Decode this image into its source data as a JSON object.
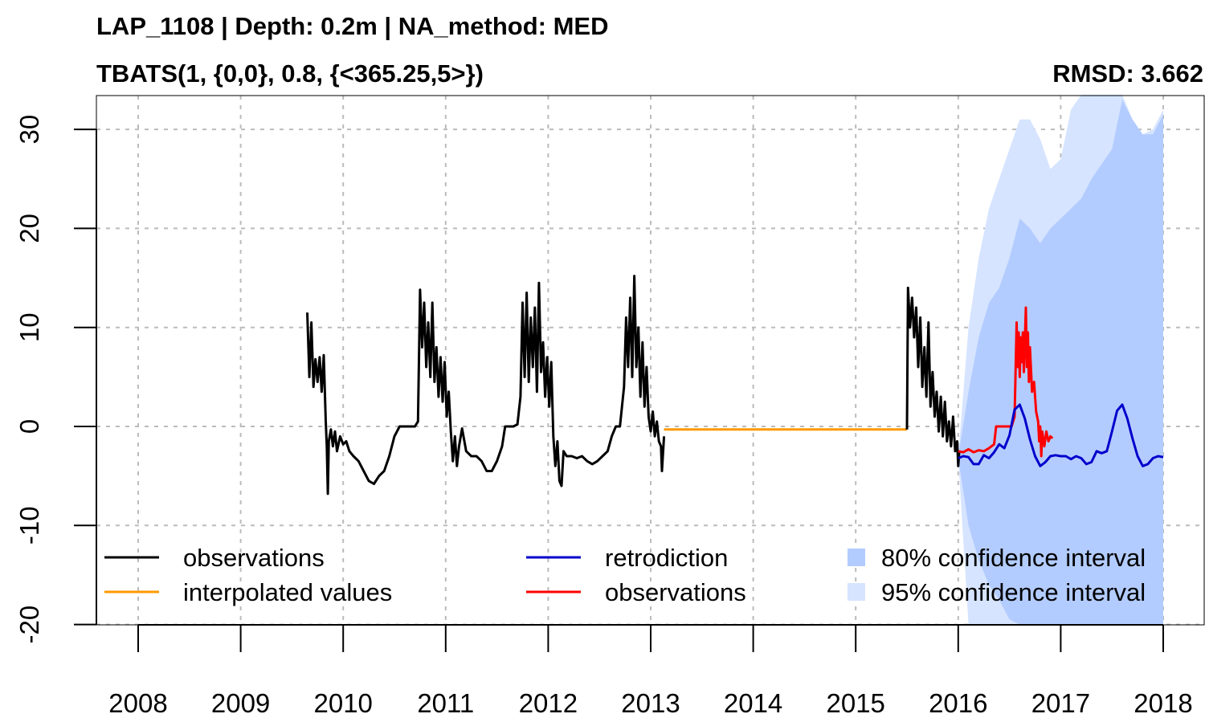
{
  "chart_data": {
    "type": "line",
    "title": "LAP_1108 | Depth: 0.2m | NA_method: MED",
    "subtitle": "TBATS(1, {0,0}, 0.8, {<365.25,5>})",
    "metric_label": "RMSD: 3.662",
    "xlabel": "",
    "ylabel": "",
    "xlim": [
      2007.6,
      2018.4
    ],
    "ylim": [
      -20,
      33.5
    ],
    "x_ticks": [
      "2008",
      "2009",
      "2010",
      "2011",
      "2012",
      "2013",
      "2014",
      "2015",
      "2016",
      "2017",
      "2018"
    ],
    "y_ticks": [
      "-20",
      "-10",
      "0",
      "10",
      "20",
      "30"
    ],
    "grid": true,
    "legend_position": "bottom",
    "legend": [
      {
        "label": "observations",
        "kind": "line",
        "color": "#000000"
      },
      {
        "label": "interpolated values",
        "kind": "line",
        "color": "#FF9900"
      },
      {
        "label": "retrodiction",
        "kind": "line",
        "color": "#0000CC"
      },
      {
        "label": "observations",
        "kind": "line",
        "color": "#FF0000"
      },
      {
        "label": "80% confidence interval",
        "kind": "box",
        "color": "#B3CCFF"
      },
      {
        "label": "95% confidence interval",
        "kind": "box",
        "color": "#D6E4FF"
      }
    ],
    "series": [
      {
        "name": "observations",
        "color": "#000000",
        "points": [
          [
            2009.65,
            11.5
          ],
          [
            2009.67,
            5.0
          ],
          [
            2009.69,
            10.5
          ],
          [
            2009.71,
            4.0
          ],
          [
            2009.73,
            6.8
          ],
          [
            2009.75,
            4.5
          ],
          [
            2009.77,
            7.0
          ],
          [
            2009.79,
            3.5
          ],
          [
            2009.81,
            7.2
          ],
          [
            2009.83,
            0.5
          ],
          [
            2009.84,
            -2.0
          ],
          [
            2009.85,
            -6.8
          ],
          [
            2009.86,
            -1.5
          ],
          [
            2009.88,
            -0.3
          ],
          [
            2009.9,
            -2.0
          ],
          [
            2009.92,
            -0.5
          ],
          [
            2009.94,
            -2.5
          ],
          [
            2009.97,
            -1.0
          ],
          [
            2010.0,
            -1.8
          ],
          [
            2010.03,
            -1.5
          ],
          [
            2010.06,
            -2.5
          ],
          [
            2010.1,
            -3.0
          ],
          [
            2010.15,
            -3.5
          ],
          [
            2010.2,
            -4.5
          ],
          [
            2010.25,
            -5.5
          ],
          [
            2010.3,
            -5.8
          ],
          [
            2010.35,
            -5.0
          ],
          [
            2010.4,
            -4.5
          ],
          [
            2010.45,
            -3.0
          ],
          [
            2010.5,
            -1.0
          ],
          [
            2010.55,
            0.0
          ],
          [
            2010.6,
            0.0
          ],
          [
            2010.65,
            0.0
          ],
          [
            2010.7,
            0.0
          ],
          [
            2010.73,
            0.5
          ],
          [
            2010.75,
            13.8
          ],
          [
            2010.77,
            8.0
          ],
          [
            2010.79,
            12.5
          ],
          [
            2010.81,
            6.0
          ],
          [
            2010.83,
            10.5
          ],
          [
            2010.85,
            5.0
          ],
          [
            2010.87,
            12.5
          ],
          [
            2010.89,
            4.5
          ],
          [
            2010.91,
            8.0
          ],
          [
            2010.93,
            3.0
          ],
          [
            2010.95,
            7.0
          ],
          [
            2010.97,
            2.5
          ],
          [
            2010.99,
            6.5
          ],
          [
            2011.01,
            1.0
          ],
          [
            2011.03,
            3.5
          ],
          [
            2011.05,
            -0.5
          ],
          [
            2011.07,
            -3.5
          ],
          [
            2011.09,
            -1.0
          ],
          [
            2011.11,
            -4.0
          ],
          [
            2011.13,
            -2.0
          ],
          [
            2011.16,
            -0.2
          ],
          [
            2011.2,
            -2.5
          ],
          [
            2011.25,
            -3.0
          ],
          [
            2011.3,
            -3.0
          ],
          [
            2011.35,
            -3.5
          ],
          [
            2011.4,
            -4.5
          ],
          [
            2011.45,
            -4.5
          ],
          [
            2011.5,
            -3.5
          ],
          [
            2011.55,
            -2.0
          ],
          [
            2011.58,
            0.0
          ],
          [
            2011.62,
            0.0
          ],
          [
            2011.66,
            0.0
          ],
          [
            2011.7,
            0.2
          ],
          [
            2011.73,
            3.0
          ],
          [
            2011.75,
            12.5
          ],
          [
            2011.77,
            5.0
          ],
          [
            2011.79,
            13.5
          ],
          [
            2011.81,
            4.5
          ],
          [
            2011.83,
            11.0
          ],
          [
            2011.85,
            6.0
          ],
          [
            2011.87,
            12.0
          ],
          [
            2011.89,
            3.5
          ],
          [
            2011.91,
            14.5
          ],
          [
            2011.93,
            5.5
          ],
          [
            2011.95,
            8.5
          ],
          [
            2011.97,
            3.0
          ],
          [
            2011.99,
            7.0
          ],
          [
            2012.01,
            2.0
          ],
          [
            2012.03,
            6.5
          ],
          [
            2012.05,
            -1.0
          ],
          [
            2012.07,
            -4.0
          ],
          [
            2012.09,
            -1.5
          ],
          [
            2012.11,
            -5.5
          ],
          [
            2012.13,
            -6.0
          ],
          [
            2012.15,
            -2.5
          ],
          [
            2012.18,
            -3.0
          ],
          [
            2012.23,
            -3.0
          ],
          [
            2012.28,
            -3.2
          ],
          [
            2012.33,
            -3.0
          ],
          [
            2012.38,
            -3.5
          ],
          [
            2012.43,
            -3.8
          ],
          [
            2012.48,
            -3.5
          ],
          [
            2012.53,
            -3.0
          ],
          [
            2012.58,
            -2.5
          ],
          [
            2012.62,
            -1.0
          ],
          [
            2012.66,
            0.0
          ],
          [
            2012.7,
            0.0
          ],
          [
            2012.74,
            4.0
          ],
          [
            2012.76,
            11.0
          ],
          [
            2012.78,
            6.0
          ],
          [
            2012.8,
            13.0
          ],
          [
            2012.82,
            5.0
          ],
          [
            2012.84,
            15.2
          ],
          [
            2012.86,
            6.0
          ],
          [
            2012.88,
            10.0
          ],
          [
            2012.9,
            3.0
          ],
          [
            2012.92,
            8.5
          ],
          [
            2012.94,
            2.0
          ],
          [
            2012.96,
            6.0
          ],
          [
            2012.98,
            1.0
          ],
          [
            2013.0,
            -0.5
          ],
          [
            2013.02,
            1.5
          ],
          [
            2013.04,
            -1.0
          ],
          [
            2013.06,
            0.5
          ],
          [
            2013.08,
            -1.5
          ],
          [
            2013.1,
            -2.0
          ],
          [
            2013.11,
            -4.5
          ],
          [
            2013.13,
            -1.0
          ]
        ]
      },
      {
        "name": "interpolated values",
        "color": "#FF9900",
        "points": [
          [
            2013.13,
            -0.3
          ],
          [
            2015.5,
            -0.3
          ]
        ]
      },
      {
        "name": "observations",
        "color": "#000000",
        "points": [
          [
            2015.5,
            -0.3
          ],
          [
            2015.51,
            14.0
          ],
          [
            2015.53,
            10.0
          ],
          [
            2015.55,
            13.0
          ],
          [
            2015.57,
            9.0
          ],
          [
            2015.59,
            12.0
          ],
          [
            2015.61,
            6.0
          ],
          [
            2015.63,
            11.0
          ],
          [
            2015.65,
            4.0
          ],
          [
            2015.67,
            8.0
          ],
          [
            2015.69,
            3.0
          ],
          [
            2015.71,
            10.5
          ],
          [
            2015.73,
            2.0
          ],
          [
            2015.75,
            5.5
          ],
          [
            2015.77,
            1.0
          ],
          [
            2015.79,
            3.5
          ],
          [
            2015.81,
            -0.5
          ],
          [
            2015.83,
            3.0
          ],
          [
            2015.85,
            -1.0
          ],
          [
            2015.87,
            2.5
          ],
          [
            2015.89,
            -1.5
          ],
          [
            2015.91,
            0.5
          ],
          [
            2015.93,
            -2.0
          ],
          [
            2015.95,
            1.0
          ],
          [
            2015.97,
            -2.5
          ],
          [
            2015.99,
            -1.5
          ],
          [
            2016.0,
            -4.0
          ],
          [
            2016.01,
            -2.5
          ]
        ]
      },
      {
        "name": "observations",
        "color": "#FF0000",
        "points": [
          [
            2016.0,
            -2.5
          ],
          [
            2016.05,
            -2.6
          ],
          [
            2016.1,
            -2.3
          ],
          [
            2016.15,
            -2.6
          ],
          [
            2016.2,
            -2.4
          ],
          [
            2016.25,
            -2.5
          ],
          [
            2016.3,
            -2.2
          ],
          [
            2016.35,
            -1.8
          ],
          [
            2016.37,
            0.0
          ],
          [
            2016.42,
            0.0
          ],
          [
            2016.47,
            0.0
          ],
          [
            2016.52,
            0.0
          ],
          [
            2016.55,
            1.0
          ],
          [
            2016.57,
            10.5
          ],
          [
            2016.58,
            6.0
          ],
          [
            2016.59,
            9.5
          ],
          [
            2016.6,
            5.0
          ],
          [
            2016.61,
            9.0
          ],
          [
            2016.62,
            6.5
          ],
          [
            2016.63,
            9.5
          ],
          [
            2016.64,
            5.5
          ],
          [
            2016.65,
            8.5
          ],
          [
            2016.66,
            12.0
          ],
          [
            2016.67,
            6.0
          ],
          [
            2016.68,
            9.5
          ],
          [
            2016.69,
            4.5
          ],
          [
            2016.7,
            8.0
          ],
          [
            2016.72,
            3.5
          ],
          [
            2016.74,
            4.5
          ],
          [
            2016.76,
            1.5
          ],
          [
            2016.78,
            0.5
          ],
          [
            2016.79,
            -1.5
          ],
          [
            2016.8,
            0.0
          ],
          [
            2016.81,
            -3.0
          ],
          [
            2016.82,
            -0.5
          ],
          [
            2016.84,
            -2.0
          ],
          [
            2016.86,
            -0.5
          ],
          [
            2016.88,
            -1.5
          ],
          [
            2016.9,
            -1.0
          ],
          [
            2016.92,
            -1.2
          ]
        ]
      },
      {
        "name": "retrodiction",
        "color": "#0000CC",
        "points": [
          [
            2016.0,
            -3.2
          ],
          [
            2016.05,
            -3.0
          ],
          [
            2016.1,
            -3.1
          ],
          [
            2016.15,
            -3.8
          ],
          [
            2016.2,
            -3.8
          ],
          [
            2016.25,
            -2.9
          ],
          [
            2016.3,
            -3.2
          ],
          [
            2016.35,
            -2.6
          ],
          [
            2016.4,
            -1.8
          ],
          [
            2016.45,
            -2.2
          ],
          [
            2016.5,
            -0.9
          ],
          [
            2016.55,
            1.7
          ],
          [
            2016.6,
            2.2
          ],
          [
            2016.65,
            0.8
          ],
          [
            2016.7,
            -1.3
          ],
          [
            2016.75,
            -3.0
          ],
          [
            2016.8,
            -4.0
          ],
          [
            2016.85,
            -3.6
          ],
          [
            2016.9,
            -3.0
          ],
          [
            2016.95,
            -2.9
          ],
          [
            2017.0,
            -3.0
          ],
          [
            2017.05,
            -3.0
          ],
          [
            2017.1,
            -3.3
          ],
          [
            2017.15,
            -3.0
          ],
          [
            2017.2,
            -3.2
          ],
          [
            2017.25,
            -3.8
          ],
          [
            2017.3,
            -3.6
          ],
          [
            2017.35,
            -2.5
          ],
          [
            2017.4,
            -2.7
          ],
          [
            2017.45,
            -2.5
          ],
          [
            2017.5,
            -0.5
          ],
          [
            2017.55,
            1.6
          ],
          [
            2017.6,
            2.2
          ],
          [
            2017.65,
            0.8
          ],
          [
            2017.7,
            -1.2
          ],
          [
            2017.75,
            -3.0
          ],
          [
            2017.8,
            -4.0
          ],
          [
            2017.85,
            -3.8
          ],
          [
            2017.9,
            -3.2
          ],
          [
            2017.95,
            -3.0
          ],
          [
            2018.0,
            -3.1
          ]
        ]
      }
    ],
    "bands": [
      {
        "name": "95% confidence interval",
        "color": "#D6E4FF",
        "x": [
          2016.0,
          2016.1,
          2016.2,
          2016.3,
          2016.4,
          2016.5,
          2016.6,
          2016.7,
          2016.8,
          2016.9,
          2017.0,
          2017.1,
          2017.2,
          2017.3,
          2017.4,
          2017.5,
          2017.6,
          2017.7,
          2017.8,
          2017.9,
          2018.0
        ],
        "upper": [
          -3.0,
          10.0,
          17.0,
          22.0,
          25.0,
          28.0,
          31.0,
          31.0,
          29.0,
          26.0,
          27.0,
          32.0,
          33.5,
          33.5,
          33.5,
          33.5,
          33.5,
          31.0,
          29.5,
          30.0,
          32.0
        ],
        "lower": [
          -3.2,
          -20.0,
          -20.0,
          -20.0,
          -20.0,
          -20.0,
          -20.0,
          -20.0,
          -20.0,
          -20.0,
          -20.0,
          -20.0,
          -20.0,
          -20.0,
          -20.0,
          -20.0,
          -20.0,
          -20.0,
          -20.0,
          -20.0,
          -20.0
        ]
      },
      {
        "name": "80% confidence interval",
        "color": "#B3CCFF",
        "x": [
          2016.0,
          2016.1,
          2016.2,
          2016.3,
          2016.4,
          2016.5,
          2016.6,
          2016.7,
          2016.8,
          2016.9,
          2017.0,
          2017.1,
          2017.2,
          2017.3,
          2017.4,
          2017.5,
          2017.6,
          2017.7,
          2017.8,
          2017.9,
          2018.0
        ],
        "upper": [
          -3.0,
          3.5,
          9.0,
          12.5,
          14.0,
          17.0,
          21.0,
          20.0,
          18.5,
          20.0,
          21.0,
          22.0,
          23.0,
          25.0,
          26.5,
          28.0,
          33.0,
          31.0,
          29.5,
          29.5,
          31.5
        ],
        "lower": [
          -3.2,
          -10.0,
          -13.5,
          -16.0,
          -17.5,
          -19.5,
          -20.0,
          -20.0,
          -20.0,
          -20.0,
          -20.0,
          -20.0,
          -20.0,
          -20.0,
          -20.0,
          -20.0,
          -20.0,
          -20.0,
          -20.0,
          -20.0,
          -20.0
        ]
      }
    ]
  }
}
